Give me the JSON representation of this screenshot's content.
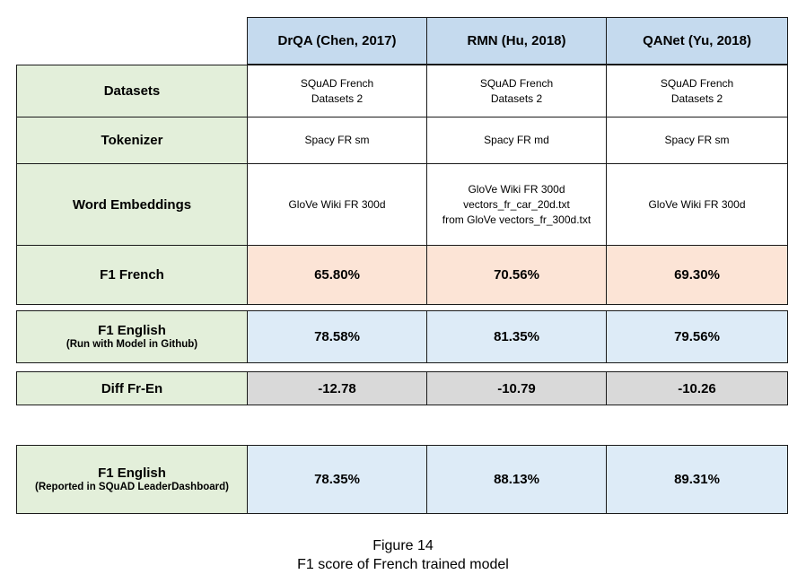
{
  "columns": [
    "DrQA (Chen, 2017)",
    "RMN (Hu, 2018)",
    "QANet (Yu, 2018)"
  ],
  "rows": {
    "datasets": {
      "label": "Datasets",
      "values": [
        [
          "SQuAD French",
          "Datasets 2"
        ],
        [
          "SQuAD French",
          "Datasets 2"
        ],
        [
          "SQuAD French",
          "Datasets 2"
        ]
      ]
    },
    "tokenizer": {
      "label": "Tokenizer",
      "values": [
        [
          "Spacy FR sm"
        ],
        [
          "Spacy FR md"
        ],
        [
          "Spacy FR sm"
        ]
      ]
    },
    "embeddings": {
      "label": "Word Embeddings",
      "values": [
        [
          "GloVe Wiki FR 300d"
        ],
        [
          "GloVe Wiki FR 300d",
          "vectors_fr_car_20d.txt",
          "from GloVe vectors_fr_300d.txt"
        ],
        [
          "GloVe Wiki FR 300d"
        ]
      ]
    },
    "f1_french": {
      "label": "F1 French",
      "values": [
        "65.80%",
        "70.56%",
        "69.30%"
      ]
    },
    "f1_english_github": {
      "label": "F1 English",
      "sublabel": "(Run with Model in Github)",
      "values": [
        "78.58%",
        "81.35%",
        "79.56%"
      ]
    },
    "diff": {
      "label": "Diff Fr-En",
      "values": [
        "-12.78",
        "-10.79",
        "-10.26"
      ]
    },
    "f1_english_reported": {
      "label": "F1 English",
      "sublabel": "(Reported in SQuAD LeaderDashboard)",
      "values": [
        "78.35%",
        "88.13%",
        "89.31%"
      ]
    }
  },
  "caption": {
    "figure": "Figure 14",
    "text": "F1 score of French trained model"
  },
  "colors": {
    "label_bg": "#e3efda",
    "header_bg": "#c5daee",
    "f1_french_bg": "#fce4d6",
    "f1_english_bg": "#ddebf7",
    "diff_bg": "#d9d9d9"
  }
}
